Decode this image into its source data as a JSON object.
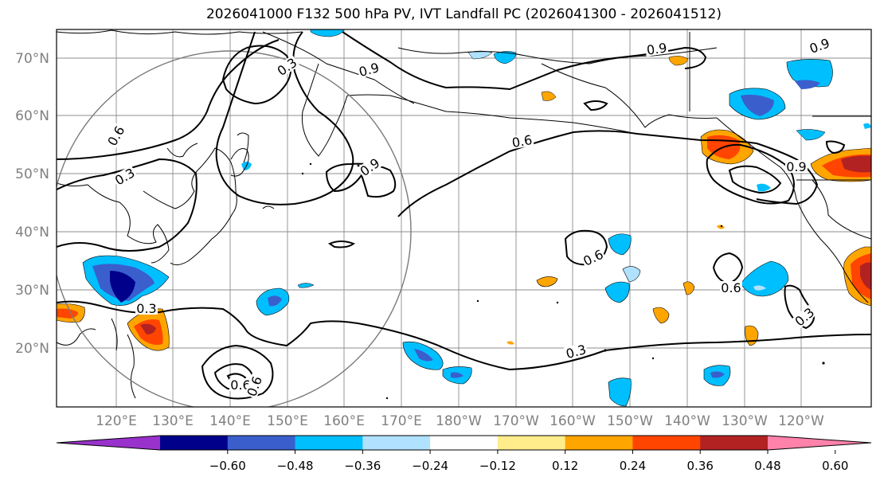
{
  "title": "2026041000 F132 500 hPa PV, IVT Landfall PC (2026041300 - 2026041512)",
  "lat_labels": [
    "70°N",
    "60°N",
    "50°N",
    "40°N",
    "30°N",
    "20°N"
  ],
  "lon_labels": [
    "120°E",
    "130°E",
    "140°E",
    "150°E",
    "160°E",
    "170°E",
    "180°W",
    "170°W",
    "160°W",
    "150°W",
    "140°W",
    "130°W",
    "120°W"
  ],
  "contour_labels": [
    "0.3",
    "0.9",
    "0.6",
    "0.3",
    "0.6",
    "0.9",
    "0.9",
    "0.9",
    "0.6",
    "0.6",
    "0.3",
    "0.6",
    "0.3",
    "0.3",
    "0.6",
    "0.9"
  ],
  "colorbar": {
    "tick_labels": [
      "−0.60",
      "−0.48",
      "−0.36",
      "−0.24",
      "−0.12",
      "0.12",
      "0.24",
      "0.36",
      "0.48",
      "0.60"
    ],
    "colors": [
      "#9932cc",
      "#00008b",
      "#3a5fcd",
      "#00bfff",
      "#b0e2ff",
      "#ffffff",
      "#ffec8b",
      "#ffa500",
      "#ff4500",
      "#b22222",
      "#ff82ab"
    ]
  }
}
